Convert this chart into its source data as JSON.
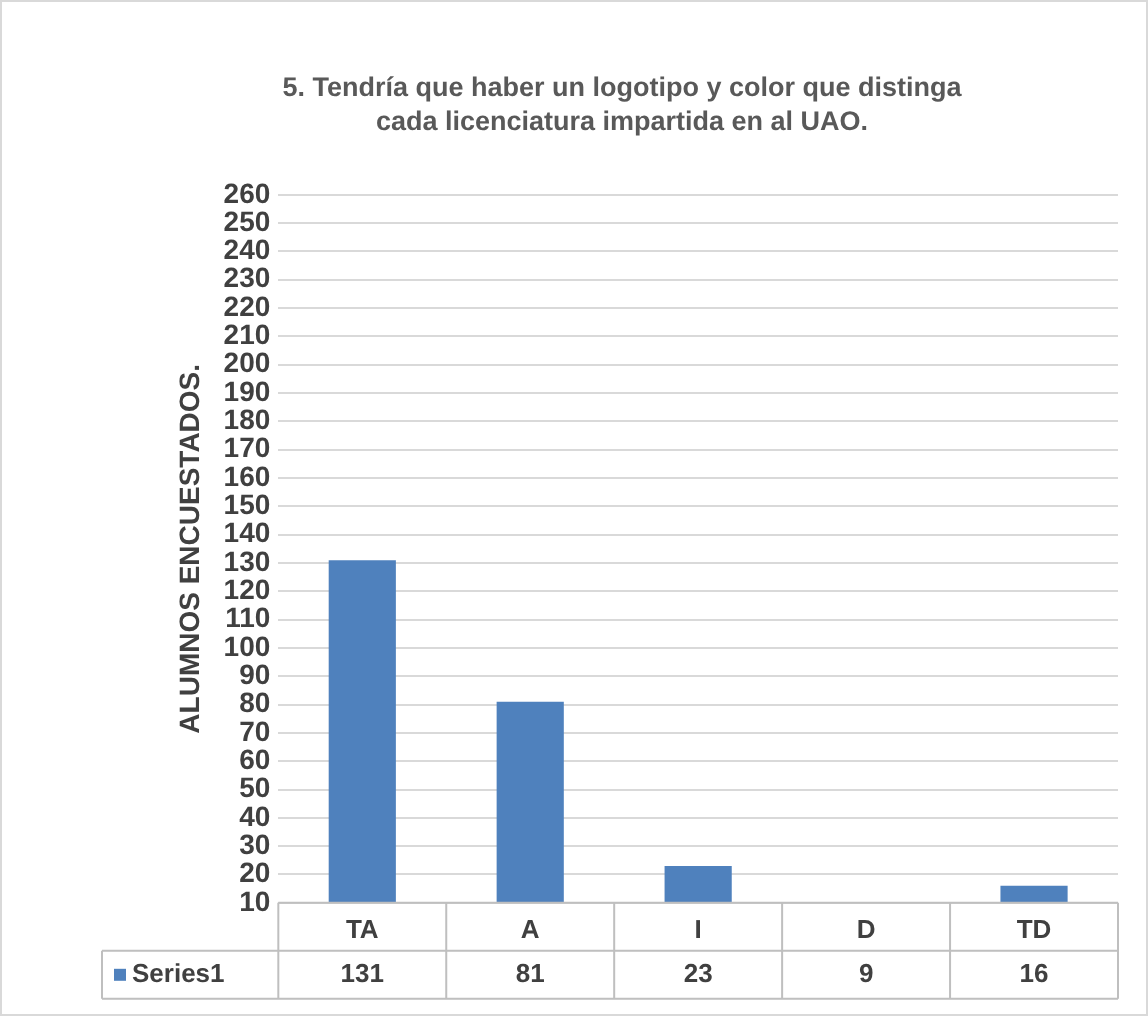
{
  "chart_data": {
    "type": "bar",
    "title": "5. Tendría que haber un logotipo y color que distinga cada licenciatura impartida en al UAO.",
    "ylabel": "ALUMNOS ENCUESTADOS.",
    "categories": [
      "TA",
      "A",
      "I",
      "D",
      "TD"
    ],
    "series": [
      {
        "name": "Series1",
        "color": "#4f81bd",
        "values": [
          131,
          81,
          23,
          null,
          16
        ],
        "value_labels": [
          "131",
          "81",
          "23",
          "9",
          "16"
        ]
      }
    ],
    "ylim": [
      10,
      260
    ],
    "yticks": [
      10,
      20,
      30,
      40,
      50,
      60,
      70,
      80,
      90,
      100,
      110,
      120,
      130,
      140,
      150,
      160,
      170,
      180,
      190,
      200,
      210,
      220,
      230,
      240,
      250,
      260
    ],
    "grid": "y",
    "legend": "bottom"
  }
}
